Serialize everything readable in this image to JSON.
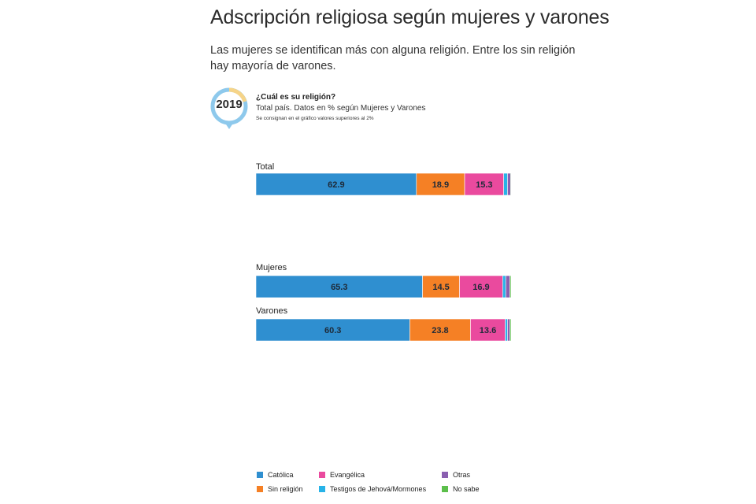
{
  "header": {
    "title": "Adscripción religiosa según mujeres y varones",
    "subtitle": "Las mujeres se identifican más con alguna religión. Entre los sin religión hay mayoría de varones."
  },
  "badge": {
    "year": "2019"
  },
  "info": {
    "question": "¿Cuál es su religión?",
    "description": "Total país. Datos en % según Mujeres y Varones",
    "note": "Se consignan en el gráfico valores superiores al 2%"
  },
  "chart_data": {
    "type": "bar",
    "orientation": "horizontal",
    "stacked": true,
    "categories": [
      "Total",
      "Mujeres",
      "Varones"
    ],
    "series": [
      {
        "name": "Católica",
        "color": "#2f8fd0",
        "values": [
          62.9,
          65.3,
          60.3
        ],
        "labels": [
          "62.9",
          "65.3",
          "60.3"
        ]
      },
      {
        "name": "Sin religión",
        "color": "#f58025",
        "values": [
          18.9,
          14.5,
          23.8
        ],
        "labels": [
          "18.9",
          "14.5",
          "23.8"
        ]
      },
      {
        "name": "Evangélica",
        "color": "#ea4a9e",
        "values": [
          15.3,
          16.9,
          13.6
        ],
        "labels": [
          "15.3",
          "16.9",
          "13.6"
        ]
      },
      {
        "name": "Testigos de Jehová/Mormones",
        "color": "#27b3e8",
        "values": [
          1.5,
          1.2,
          0.9
        ],
        "labels": [
          "",
          "",
          ""
        ]
      },
      {
        "name": "Otras",
        "color": "#8a5fb0",
        "values": [
          1.2,
          1.6,
          0.9
        ],
        "labels": [
          "",
          "",
          ""
        ]
      },
      {
        "name": "No sabe",
        "color": "#5cbf4b",
        "values": [
          0.2,
          0.5,
          0.5
        ],
        "labels": [
          "",
          "",
          ""
        ]
      }
    ],
    "xlim": [
      0,
      100
    ],
    "grid": false,
    "legend_position": "bottom"
  }
}
